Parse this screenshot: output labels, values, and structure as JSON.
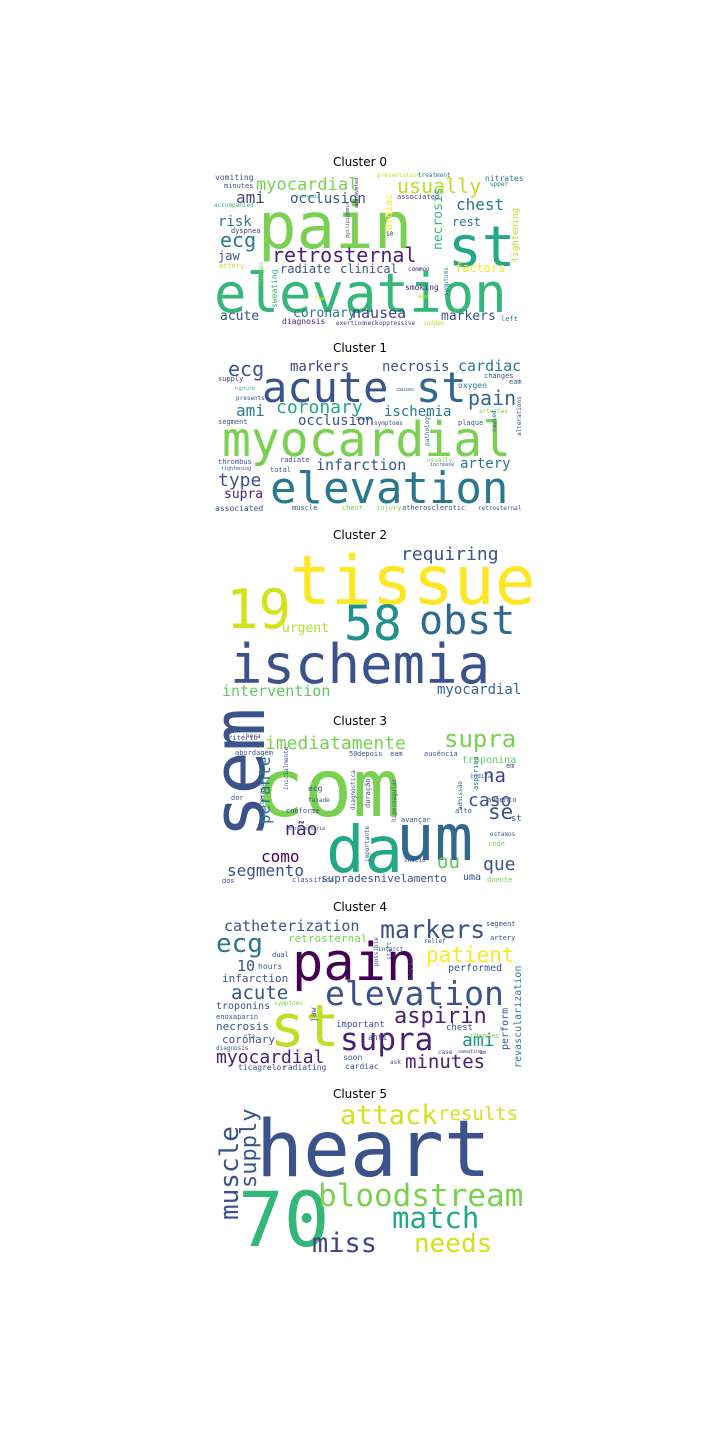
{
  "panels": [
    {
      "title": "Cluster 0",
      "words": [
        {
          "text": "pain",
          "color": "#7ad151"
        },
        {
          "text": "st",
          "color": "#22a884"
        },
        {
          "text": "elevation",
          "color": "#35b779"
        },
        {
          "text": "myocardial",
          "color": "#7ad151"
        },
        {
          "text": "usually",
          "color": "#bddf26"
        },
        {
          "text": "ami",
          "color": "#414487"
        },
        {
          "text": "occlusion",
          "color": "#3b528b"
        },
        {
          "text": "ecg",
          "color": "#2a788e"
        },
        {
          "text": "retrosternal",
          "color": "#482173"
        },
        {
          "text": "chest",
          "color": "#2a788e"
        },
        {
          "text": "rest",
          "color": "#2a788e"
        },
        {
          "text": "risk",
          "color": "#2a788e"
        },
        {
          "text": "jaw",
          "color": "#3b528b"
        },
        {
          "text": "radiate",
          "color": "#3b528b"
        },
        {
          "text": "clinical",
          "color": "#3b528b"
        },
        {
          "text": "factors",
          "color": "#fde725"
        },
        {
          "text": "necrosis",
          "color": "#35b779"
        },
        {
          "text": "coronary",
          "color": "#2a788e"
        },
        {
          "text": "nausea",
          "color": "#414487"
        },
        {
          "text": "markers",
          "color": "#3b528b"
        },
        {
          "text": "acute",
          "color": "#3b528b"
        },
        {
          "text": "diagnosis",
          "color": "#482173"
        },
        {
          "text": "tightening",
          "color": "#bddf26"
        },
        {
          "text": "vomiting",
          "color": "#3b528b"
        },
        {
          "text": "nitrates",
          "color": "#2a788e"
        },
        {
          "text": "cardiac",
          "color": "#fde725"
        },
        {
          "text": "dyspnea",
          "color": "#414487"
        },
        {
          "text": "sweating",
          "color": "#35b779"
        },
        {
          "text": "smoking",
          "color": "#482173"
        },
        {
          "text": "changes",
          "color": "#7ad151"
        },
        {
          "text": "artery",
          "color": "#bddf26"
        },
        {
          "text": "minutes",
          "color": "#3b528b"
        },
        {
          "text": "accompanied",
          "color": "#35b779"
        },
        {
          "text": "associated",
          "color": "#414487"
        },
        {
          "text": "left",
          "color": "#2a788e"
        },
        {
          "text": "upper",
          "color": "#2a788e"
        },
        {
          "text": "presentation",
          "color": "#bddf26"
        },
        {
          "text": "treatment",
          "color": "#2a788e"
        },
        {
          "text": "common",
          "color": "#482173"
        },
        {
          "text": "exertion",
          "color": "#414487"
        },
        {
          "text": "neck",
          "color": "#482173"
        },
        {
          "text": "oppressive",
          "color": "#414487"
        },
        {
          "text": "sudden",
          "color": "#bddf26"
        },
        {
          "text": "symptoms",
          "color": "#2a788e"
        },
        {
          "text": "age",
          "color": "#bddf26"
        },
        {
          "text": "type",
          "color": "#fde725"
        },
        {
          "text": "10",
          "color": "#414487"
        },
        {
          "text": "dyslipidemia",
          "color": "#414487"
        },
        {
          "text": "aggravated",
          "color": "#482173"
        },
        {
          "text": "ischemia",
          "color": "#22a884"
        }
      ]
    },
    {
      "title": "Cluster 1",
      "words": [
        {
          "text": "myocardial",
          "color": "#7ad151"
        },
        {
          "text": "acute",
          "color": "#3b528b"
        },
        {
          "text": "st",
          "color": "#31688e"
        },
        {
          "text": "elevation",
          "color": "#2a788e"
        },
        {
          "text": "ecg",
          "color": "#3b528b"
        },
        {
          "text": "markers",
          "color": "#414487"
        },
        {
          "text": "necrosis",
          "color": "#3b528b"
        },
        {
          "text": "cardiac",
          "color": "#2a788e"
        },
        {
          "text": "pain",
          "color": "#31688e"
        },
        {
          "text": "coronary",
          "color": "#22a884"
        },
        {
          "text": "ami",
          "color": "#2a788e"
        },
        {
          "text": "occlusion",
          "color": "#3b528b"
        },
        {
          "text": "ischemia",
          "color": "#2a788e"
        },
        {
          "text": "infarction",
          "color": "#3b528b"
        },
        {
          "text": "artery",
          "color": "#2a788e"
        },
        {
          "text": "type",
          "color": "#3b528b"
        },
        {
          "text": "supra",
          "color": "#482173"
        },
        {
          "text": "supply",
          "color": "#414487"
        },
        {
          "text": "changes",
          "color": "#3b528b"
        },
        {
          "text": "oxygen",
          "color": "#2a788e"
        },
        {
          "text": "eam",
          "color": "#3b528b"
        },
        {
          "text": "segment",
          "color": "#3b528b"
        },
        {
          "text": "thrombus",
          "color": "#3b528b"
        },
        {
          "text": "tightening",
          "color": "#3b528b"
        },
        {
          "text": "radiate",
          "color": "#3b528b"
        },
        {
          "text": "total",
          "color": "#3b528b"
        },
        {
          "text": "plaque",
          "color": "#3b528b"
        },
        {
          "text": "symptoms",
          "color": "#3b528b"
        },
        {
          "text": "usually",
          "color": "#7ad151"
        },
        {
          "text": "arteries",
          "color": "#7ad151"
        },
        {
          "text": "pathology",
          "color": "#2a788e"
        },
        {
          "text": "increase",
          "color": "#3b528b"
        },
        {
          "text": "associated",
          "color": "#3b528b"
        },
        {
          "text": "muscle",
          "color": "#3b528b"
        },
        {
          "text": "chest",
          "color": "#7ad151"
        },
        {
          "text": "injury",
          "color": "#7ad151"
        },
        {
          "text": "atherosclerotic",
          "color": "#3b528b"
        },
        {
          "text": "retrosternal",
          "color": "#3b528b"
        },
        {
          "text": "caused",
          "color": "#3b528b"
        },
        {
          "text": "alterations",
          "color": "#3b528b"
        },
        {
          "text": "presents",
          "color": "#3b528b"
        },
        {
          "text": "rupture",
          "color": "#35b779"
        },
        {
          "text": "causes",
          "color": "#3b528b"
        },
        {
          "text": "death",
          "color": "#3b528b"
        }
      ]
    },
    {
      "title": "Cluster 2",
      "words": [
        {
          "text": "tissue",
          "color": "#fde725"
        },
        {
          "text": "19",
          "color": "#d2e21b"
        },
        {
          "text": "58",
          "color": "#21918c"
        },
        {
          "text": "obst",
          "color": "#31688e"
        },
        {
          "text": "ischemia",
          "color": "#3b528b"
        },
        {
          "text": "requiring",
          "color": "#3b528b"
        },
        {
          "text": "urgent",
          "color": "#b5de2b"
        },
        {
          "text": "intervention",
          "color": "#5ec962"
        },
        {
          "text": "myocardial",
          "color": "#31688e"
        }
      ]
    },
    {
      "title": "Cluster 3",
      "words": [
        {
          "text": "com",
          "color": "#7ad151"
        },
        {
          "text": "sem",
          "color": "#3b528b"
        },
        {
          "text": "um",
          "color": "#31688e"
        },
        {
          "text": "da",
          "color": "#22a884"
        },
        {
          "text": "imediatamente",
          "color": "#7ad151"
        },
        {
          "text": "supra",
          "color": "#7ad151"
        },
        {
          "text": "perante",
          "color": "#2a788e"
        },
        {
          "text": "na",
          "color": "#414487"
        },
        {
          "text": "caso",
          "color": "#3b528b"
        },
        {
          "text": "se",
          "color": "#3b528b"
        },
        {
          "text": "não",
          "color": "#482173"
        },
        {
          "text": "como",
          "color": "#440154"
        },
        {
          "text": "ou",
          "color": "#5ec962"
        },
        {
          "text": "que",
          "color": "#3b528b"
        },
        {
          "text": "segmento",
          "color": "#3b528b"
        },
        {
          "text": "supradesnivelamento",
          "color": "#3b528b"
        },
        {
          "text": "uma",
          "color": "#3b528b"
        },
        {
          "text": "troponina",
          "color": "#5ec962"
        },
        {
          "text": "aspirina",
          "color": "#2a788e"
        },
        {
          "text": "abordagem",
          "color": "#3b528b"
        },
        {
          "text": "ausência",
          "color": "#3b528b"
        },
        {
          "text": "depois",
          "color": "#3b528b"
        },
        {
          "text": "eam",
          "color": "#3b528b"
        },
        {
          "text": "ecg",
          "color": "#3b528b"
        },
        {
          "text": "avançar",
          "color": "#3b528b"
        },
        {
          "text": "classifica",
          "color": "#3b528b"
        },
        {
          "text": "dos",
          "color": "#3b528b"
        },
        {
          "text": "dor",
          "color": "#3b528b"
        },
        {
          "text": "alto",
          "color": "#3b528b"
        },
        {
          "text": "aumento",
          "color": "#3b528b"
        },
        {
          "text": "st",
          "color": "#3b528b"
        },
        {
          "text": "hora",
          "color": "#3b528b"
        },
        {
          "text": "critério",
          "color": "#3b528b"
        },
        {
          "text": "conforme",
          "color": "#3b528b"
        },
        {
          "text": "doente",
          "color": "#7ad151"
        },
        {
          "text": "cede",
          "color": "#7ad151"
        },
        {
          "text": "admissão",
          "color": "#3b528b"
        },
        {
          "text": "duração",
          "color": "#3b528b"
        },
        {
          "text": "diagnóstica",
          "color": "#3b528b"
        },
        {
          "text": "inicialmente",
          "color": "#3b528b"
        },
        {
          "text": "alterações",
          "color": "#3b528b"
        },
        {
          "text": "hipocoagular",
          "color": "#3b528b"
        },
        {
          "text": "importante",
          "color": "#3b528b"
        },
        {
          "text": "indica",
          "color": "#3b528b"
        },
        {
          "text": "em",
          "color": "#3b528b"
        },
        {
          "text": "estamos",
          "color": "#3b528b"
        },
        {
          "text": "início",
          "color": "#3b528b"
        },
        {
          "text": "50",
          "color": "#3b528b"
        },
        {
          "text": "fazade",
          "color": "#3b528b"
        },
        {
          "text": "desnecessária",
          "color": "#3b528b"
        }
      ]
    },
    {
      "title": "Cluster 4",
      "words": [
        {
          "text": "pain",
          "color": "#440154"
        },
        {
          "text": "st",
          "color": "#bddf26"
        },
        {
          "text": "catheterization",
          "color": "#3b528b"
        },
        {
          "text": "markers",
          "color": "#3b528b"
        },
        {
          "text": "ecg",
          "color": "#2a788e"
        },
        {
          "text": "patient",
          "color": "#fde725"
        },
        {
          "text": "elevation",
          "color": "#3b528b"
        },
        {
          "text": "supra",
          "color": "#482173"
        },
        {
          "text": "aspirin",
          "color": "#482173"
        },
        {
          "text": "acute",
          "color": "#3b528b"
        },
        {
          "text": "ami",
          "color": "#21918c"
        },
        {
          "text": "minutes",
          "color": "#482173"
        },
        {
          "text": "myocardial",
          "color": "#482173"
        },
        {
          "text": "retrosternal",
          "color": "#7ad151"
        },
        {
          "text": "10",
          "color": "#3b528b"
        },
        {
          "text": "hours",
          "color": "#3b528b"
        },
        {
          "text": "infarction",
          "color": "#3b528b"
        },
        {
          "text": "troponins",
          "color": "#3b528b"
        },
        {
          "text": "enoxaparin",
          "color": "#3b528b"
        },
        {
          "text": "necrosis",
          "color": "#3b528b"
        },
        {
          "text": "coronary",
          "color": "#3b528b"
        },
        {
          "text": "diagnosis",
          "color": "#3b528b"
        },
        {
          "text": "ticagrelor",
          "color": "#3b528b"
        },
        {
          "text": "radiating",
          "color": "#3b528b"
        },
        {
          "text": "performed",
          "color": "#3b528b"
        },
        {
          "text": "perform",
          "color": "#3b528b"
        },
        {
          "text": "revascularization",
          "color": "#2a788e"
        },
        {
          "text": "chest",
          "color": "#3b528b"
        },
        {
          "text": "cardiac",
          "color": "#3b528b"
        },
        {
          "text": "soon",
          "color": "#3b528b"
        },
        {
          "text": "important",
          "color": "#3b528b"
        },
        {
          "text": "anti",
          "color": "#3b528b"
        },
        {
          "text": "segment",
          "color": "#3b528b"
        },
        {
          "text": "artery",
          "color": "#3b528b"
        },
        {
          "text": "relief",
          "color": "#3b528b"
        },
        {
          "text": "dual",
          "color": "#3b528b"
        },
        {
          "text": "jaw",
          "color": "#3b528b"
        },
        {
          "text": "possible",
          "color": "#3b528b"
        },
        {
          "text": "start",
          "color": "#3b528b"
        },
        {
          "text": "blocker",
          "color": "#3b528b"
        },
        {
          "text": "changes",
          "color": "#7ad151"
        },
        {
          "text": "symptoms",
          "color": "#7ad151"
        },
        {
          "text": "case",
          "color": "#3b528b"
        },
        {
          "text": "ask",
          "color": "#3b528b"
        },
        {
          "text": "sweating",
          "color": "#3b528b"
        },
        {
          "text": "cta",
          "color": "#3b528b"
        },
        {
          "text": "em",
          "color": "#3b528b"
        },
        {
          "text": "infarct",
          "color": "#3b528b"
        }
      ]
    },
    {
      "title": "Cluster 5",
      "words": [
        {
          "text": "heart",
          "color": "#3b528b"
        },
        {
          "text": "70",
          "color": "#35b779"
        },
        {
          "text": "attack",
          "color": "#d2e21b"
        },
        {
          "text": "results",
          "color": "#d2e21b"
        },
        {
          "text": "muscle",
          "color": "#3b528b"
        },
        {
          "text": "supply",
          "color": "#3b528b"
        },
        {
          "text": "bloodstream",
          "color": "#7ad151"
        },
        {
          "text": "match",
          "color": "#22a884"
        },
        {
          "text": "miss",
          "color": "#414487"
        },
        {
          "text": "needs",
          "color": "#d2e21b"
        }
      ]
    }
  ]
}
